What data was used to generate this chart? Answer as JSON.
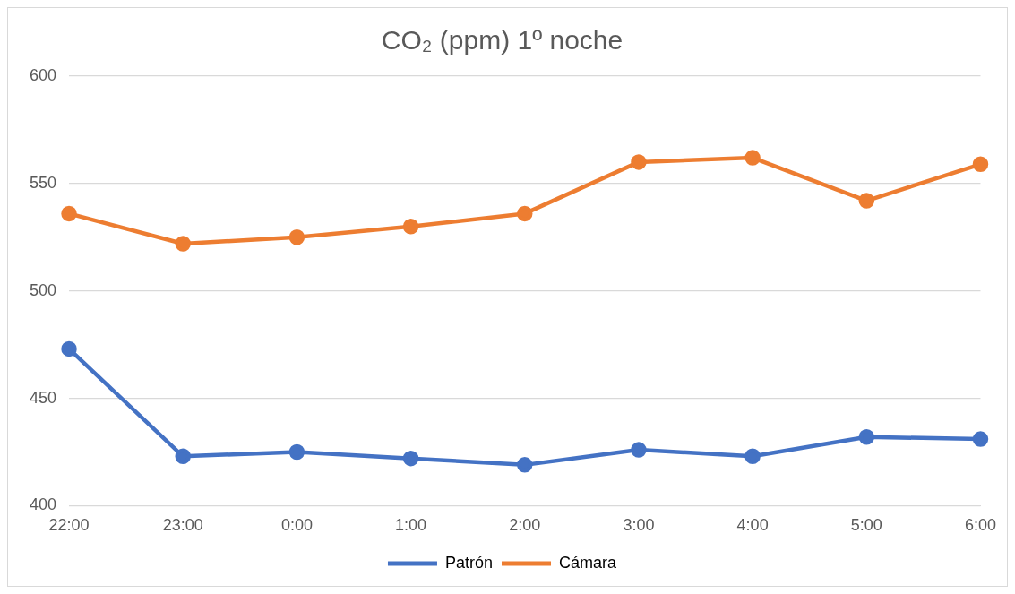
{
  "chart_data": {
    "type": "line",
    "title": "CO₂ (ppm) 1º noche",
    "categories": [
      "22:00",
      "23:00",
      "0:00",
      "1:00",
      "2:00",
      "3:00",
      "4:00",
      "5:00",
      "6:00"
    ],
    "series": [
      {
        "name": "Patrón",
        "color": "#4472c4",
        "values": [
          473,
          423,
          425,
          422,
          419,
          426,
          423,
          432,
          431
        ]
      },
      {
        "name": "Cámara",
        "color": "#ed7d31",
        "values": [
          536,
          522,
          525,
          530,
          536,
          560,
          562,
          542,
          559
        ]
      }
    ],
    "ylim": [
      400,
      600
    ],
    "yticks": [
      400,
      450,
      500,
      550,
      600
    ],
    "grid": "y",
    "legend": "bottom",
    "marker": "circle",
    "line_style": "solid"
  }
}
